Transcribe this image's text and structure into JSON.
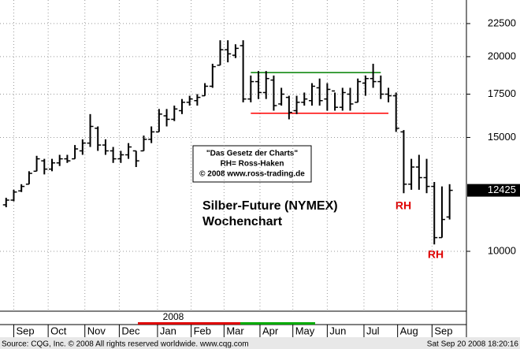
{
  "chart_data": {
    "type": "ohlc",
    "title": "Silber-Future (NYMEX)",
    "subtitle": "Wochenchart",
    "box_lines": [
      "\"Das Gesetz der Charts\"",
      "RH= Ross-Haken",
      "© 2008 www.ross-trading.de"
    ],
    "annotations": [
      "RH",
      "RH"
    ],
    "year_label": "2008",
    "source": "Source: CQG, Inc. © 2008 All rights reserved worldwide. www.cqg.com",
    "timestamp": "Sat Sep 20 2008 18:20:16",
    "x": [
      0,
      1,
      2,
      3,
      4,
      5,
      6,
      7,
      8,
      9,
      10,
      11,
      12,
      13,
      14,
      15,
      16,
      17,
      18,
      19,
      20,
      21,
      22,
      23,
      24,
      25,
      26,
      27,
      28,
      29,
      30,
      31,
      32,
      33,
      34,
      35,
      36,
      37,
      38,
      39,
      40,
      41,
      42,
      43,
      44,
      45,
      46,
      47,
      48,
      49,
      50,
      51,
      52,
      53,
      54,
      55,
      56,
      57,
      58
    ],
    "open": [
      11800,
      12000,
      12400,
      12700,
      13300,
      13800,
      13400,
      13700,
      13900,
      13900,
      14300,
      14700,
      15500,
      14600,
      14300,
      13900,
      14100,
      14300,
      14300,
      14900,
      15300,
      16200,
      16000,
      16500,
      17000,
      17100,
      17400,
      18000,
      19400,
      20500,
      20100,
      20800,
      17200,
      18300,
      17600,
      18400,
      16900,
      17300,
      16500,
      17000,
      17100,
      17900,
      17200,
      17700,
      16700,
      17500,
      17000,
      18200,
      18500,
      18300,
      17500,
      17400,
      15300,
      12700,
      13500,
      13000,
      12600,
      10500,
      11300
    ],
    "high": [
      12100,
      12450,
      12700,
      13300,
      14050,
      13900,
      13900,
      14100,
      14100,
      14600,
      14900,
      16300,
      15600,
      14900,
      14500,
      14300,
      14700,
      14300,
      15100,
      15600,
      16600,
      16600,
      16800,
      17200,
      17400,
      17500,
      18200,
      19500,
      21200,
      21200,
      20900,
      21200,
      18700,
      19000,
      19000,
      18700,
      17900,
      17400,
      17400,
      17600,
      18200,
      18500,
      18200,
      17600,
      17900,
      17900,
      18500,
      18700,
      19500,
      18700,
      17900,
      17600,
      15400,
      13900,
      14100,
      13900,
      12800,
      12600,
      12700
    ],
    "low": [
      11700,
      11950,
      12350,
      12700,
      13300,
      13150,
      13300,
      13550,
      13700,
      13900,
      14100,
      14500,
      14300,
      14100,
      13700,
      13700,
      13900,
      13500,
      14300,
      14700,
      15300,
      15600,
      15900,
      16300,
      16800,
      16800,
      17400,
      17900,
      19400,
      19600,
      19900,
      17000,
      17000,
      17200,
      17200,
      16500,
      16800,
      16000,
      16300,
      16800,
      16800,
      16800,
      16500,
      16500,
      16500,
      16500,
      17000,
      17400,
      17900,
      17200,
      17000,
      15300,
      12300,
      12450,
      12450,
      12300,
      10250,
      10500,
      11200
    ],
    "close": [
      12000,
      12350,
      12600,
      13200,
      13900,
      13400,
      13700,
      13900,
      13800,
      14400,
      14700,
      15600,
      14600,
      14300,
      13900,
      14100,
      14500,
      13800,
      14900,
      15300,
      16300,
      16000,
      16600,
      17000,
      17200,
      17300,
      18000,
      19300,
      20500,
      20200,
      20600,
      17200,
      18300,
      17600,
      18500,
      16800,
      17500,
      16400,
      17000,
      17200,
      18000,
      17100,
      17800,
      16700,
      17600,
      16900,
      18300,
      18500,
      18300,
      17500,
      17400,
      15500,
      12700,
      13500,
      13000,
      12600,
      10500,
      11200,
      12425
    ],
    "color": "#000000",
    "levels": [
      {
        "value": 18900,
        "from": 32,
        "to": 49,
        "color": "#008000"
      },
      {
        "value": 16350,
        "from": 32,
        "to": 50,
        "color": "#ff0000"
      }
    ],
    "last_price": 12425,
    "xlim": [
      -0.8,
      60.2
    ],
    "xticks": [
      {
        "value": 1,
        "label": "Sep"
      },
      {
        "value": 5.5,
        "label": "Oct"
      },
      {
        "value": 10.3,
        "label": "Nov"
      },
      {
        "value": 14.8,
        "label": "Dec"
      },
      {
        "value": 19.8,
        "label": "Jan"
      },
      {
        "value": 24.2,
        "label": "Feb"
      },
      {
        "value": 28.5,
        "label": "Mar"
      },
      {
        "value": 33.2,
        "label": "Apr"
      },
      {
        "value": 37.5,
        "label": "May"
      },
      {
        "value": 42,
        "label": "Jun"
      },
      {
        "value": 46.8,
        "label": "Jul"
      },
      {
        "value": 51.2,
        "label": "Aug"
      },
      {
        "value": 55.7,
        "label": "Sep"
      }
    ],
    "ylim": [
      8080,
      24470
    ],
    "yticks": [
      10000,
      15000,
      17500,
      20000,
      22500
    ],
    "log_scale": true,
    "grid": true
  }
}
